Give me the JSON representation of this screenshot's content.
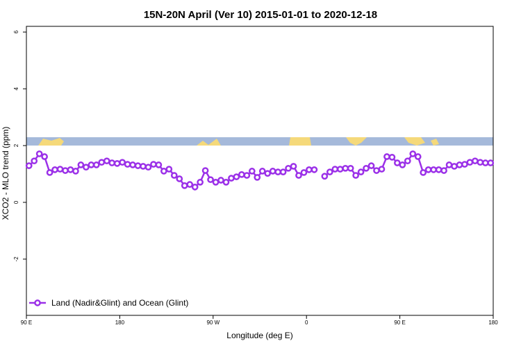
{
  "chart_data": {
    "type": "line",
    "title": "15N-20N April (Ver 10)   2015-01-01 to 2020-12-18",
    "x_label": "Longitude (deg E)",
    "y_label": "XCO2 - MLO trend (ppm)",
    "xlim": [
      90,
      540
    ],
    "ylim": [
      -3.98,
      6.2
    ],
    "xticks": [
      {
        "value": 90,
        "label": "90 E"
      },
      180,
      {
        "value": 270,
        "label": "90 W"
      },
      {
        "value": 360,
        "label": "0"
      },
      {
        "value": 450,
        "label": "90 E"
      },
      {
        "value": 540,
        "label": "180"
      }
    ],
    "yticks": [
      -2,
      0,
      2,
      4,
      6
    ],
    "legend": "bottom-left",
    "x": [
      92.5,
      97.5,
      102.5,
      107.5,
      112.5,
      117.5,
      122.5,
      127.5,
      132.5,
      137.5,
      142.5,
      147.5,
      152.5,
      157.5,
      162.5,
      167.5,
      172.5,
      177.5,
      182.5,
      187.5,
      192.5,
      197.5,
      202.5,
      207.5,
      212.5,
      217.5,
      222.5,
      227.5,
      232.5,
      237.5,
      242.5,
      247.5,
      252.5,
      257.5,
      262.5,
      267.5,
      272.5,
      277.5,
      282.5,
      287.5,
      292.5,
      297.5,
      302.5,
      307.5,
      312.5,
      317.5,
      322.5,
      327.5,
      332.5,
      337.5,
      342.5,
      347.5,
      352.5,
      357.5,
      362.5,
      367.5,
      372.5,
      377.5,
      382.5,
      387.5,
      392.5,
      397.5,
      402.5,
      407.5,
      412.5,
      417.5,
      422.5,
      427.5,
      432.5,
      437.5,
      442.5,
      447.5,
      452.5,
      457.5,
      462.5,
      467.5,
      472.5,
      477.5,
      482.5,
      487.5,
      492.5,
      497.5,
      502.5,
      507.5,
      512.5,
      517.5,
      522.5,
      527.5,
      532.5,
      537.5
    ],
    "series": [
      {
        "name": "Land (Nadir&Glint) and Ocean (Glint)",
        "color": "#9b30e8",
        "values": [
          1.29,
          1.46,
          1.71,
          1.61,
          1.05,
          1.15,
          1.17,
          1.12,
          1.15,
          1.1,
          1.32,
          1.24,
          1.32,
          1.32,
          1.41,
          1.46,
          1.39,
          1.37,
          1.41,
          1.34,
          1.32,
          1.29,
          1.27,
          1.24,
          1.34,
          1.32,
          1.1,
          1.17,
          0.95,
          0.83,
          0.59,
          0.63,
          0.54,
          0.71,
          1.12,
          0.8,
          0.71,
          0.78,
          0.71,
          0.85,
          0.9,
          0.98,
          0.95,
          1.1,
          0.88,
          1.1,
          1.02,
          1.1,
          1.07,
          1.07,
          1.2,
          1.27,
          0.95,
          1.05,
          1.15,
          1.15,
          null,
          0.92,
          1.07,
          1.17,
          1.17,
          1.2,
          1.2,
          0.95,
          1.07,
          1.2,
          1.29,
          1.12,
          1.17,
          1.61,
          1.59,
          1.39,
          1.32,
          1.46,
          1.71,
          1.61,
          1.05,
          1.15,
          1.15,
          1.15,
          1.12,
          1.32,
          1.27,
          1.32,
          1.34,
          1.41,
          1.46,
          1.41,
          1.39,
          1.39
        ]
      }
    ]
  }
}
